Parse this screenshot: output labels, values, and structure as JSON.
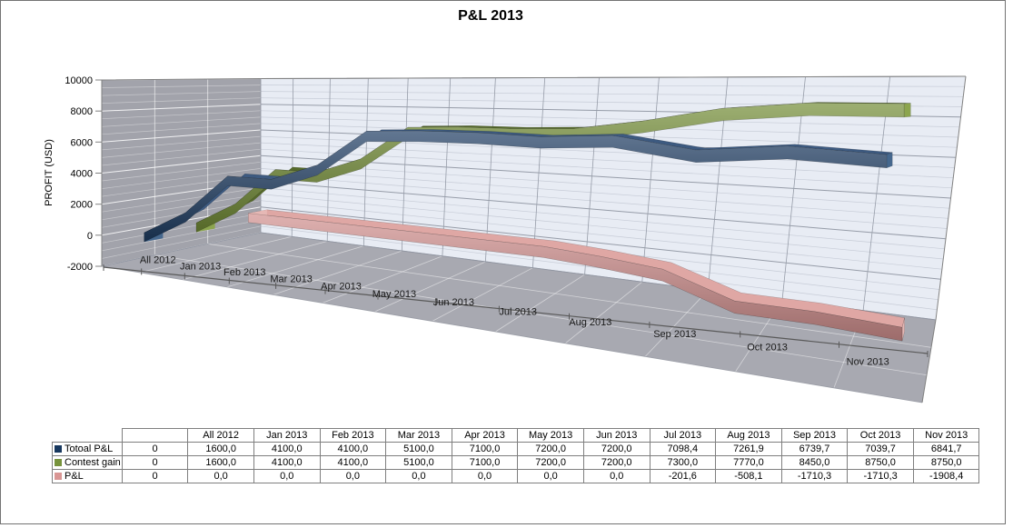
{
  "title": "P&L 2013",
  "chart_data": {
    "type": "line3d",
    "title": "P&L 2013",
    "value_axis": {
      "title": "PROFIT  (USD)",
      "min": -2000,
      "max": 10000,
      "major_unit": 2000,
      "minor_unit": 500,
      "tick_labels": [
        "10000",
        "8000",
        "6000",
        "4000",
        "2000",
        "0",
        "-2000"
      ]
    },
    "categories": [
      "",
      "All 2012",
      "Jan 2013",
      "Feb 2013",
      "Mar 2013",
      "Apr 2013",
      "May 2013",
      "Jun 2013",
      "Jul 2013",
      "Aug 2013",
      "Sep 2013",
      "Oct 2013",
      "Nov 2013"
    ],
    "series": [
      {
        "name": "Totoal P&L",
        "depth_slot": "front",
        "color": "#1F3D63",
        "top_color": "#3D5A80",
        "cap_color": "#46688E",
        "values": [
          0,
          1600,
          4100,
          4100,
          5100,
          7100,
          7200,
          7200,
          7098.4,
          7261.9,
          6739.7,
          7039.7,
          6841.7
        ]
      },
      {
        "name": "Contest gain",
        "depth_slot": "middle",
        "color": "#738C36",
        "top_color": "#566A2B",
        "cap_color": "#8CA54E",
        "values": [
          0,
          1600,
          4100,
          4100,
          5100,
          7100,
          7200,
          7200,
          7300,
          7770,
          8450,
          8750,
          8750
        ]
      },
      {
        "name": "P&L",
        "depth_slot": "back",
        "color": "#D1908E",
        "top_color": "#DFA7A4",
        "cap_color": "#E6B8B5",
        "values": [
          0,
          0,
          0,
          0,
          0,
          0,
          0,
          0,
          -201.6,
          -508.1,
          -1710.3,
          -1710.3,
          -1908.4
        ]
      }
    ],
    "walls": {
      "back_fill": "#E8ECF4",
      "side_fill": "#A2A3AB",
      "floor_fill": "#A8A9B1",
      "back_grid_major": "#969CA8",
      "back_grid_minor": "#C7CCD7"
    },
    "legend_position": "table-left",
    "grid": true
  },
  "table": {
    "col_headers": [
      "",
      "",
      "All 2012",
      "Jan 2013",
      "Feb 2013",
      "Mar 2013",
      "Apr 2013",
      "May 2013",
      "Jun 2013",
      "Jul 2013",
      "Aug 2013",
      "Sep 2013",
      "Oct 2013",
      "Nov 2013"
    ],
    "rows": [
      {
        "label": "Totoal P&L",
        "swatch": "#17375E",
        "cells": [
          "0",
          "1600,0",
          "4100,0",
          "4100,0",
          "5100,0",
          "7100,0",
          "7200,0",
          "7200,0",
          "7098,4",
          "7261,9",
          "6739,7",
          "7039,7",
          "6841,7"
        ]
      },
      {
        "label": "Contest gain",
        "swatch": "#77933C",
        "cells": [
          "0",
          "1600,0",
          "4100,0",
          "4100,0",
          "5100,0",
          "7100,0",
          "7200,0",
          "7200,0",
          "7300,0",
          "7770,0",
          "8450,0",
          "8750,0",
          "8750,0"
        ]
      },
      {
        "label": "P&L",
        "swatch": "#D99694",
        "cells": [
          "0",
          "0,0",
          "0,0",
          "0,0",
          "0,0",
          "0,0",
          "0,0",
          "0,0",
          "-201,6",
          "-508,1",
          "-1710,3",
          "-1710,3",
          "-1908,4"
        ]
      }
    ]
  }
}
